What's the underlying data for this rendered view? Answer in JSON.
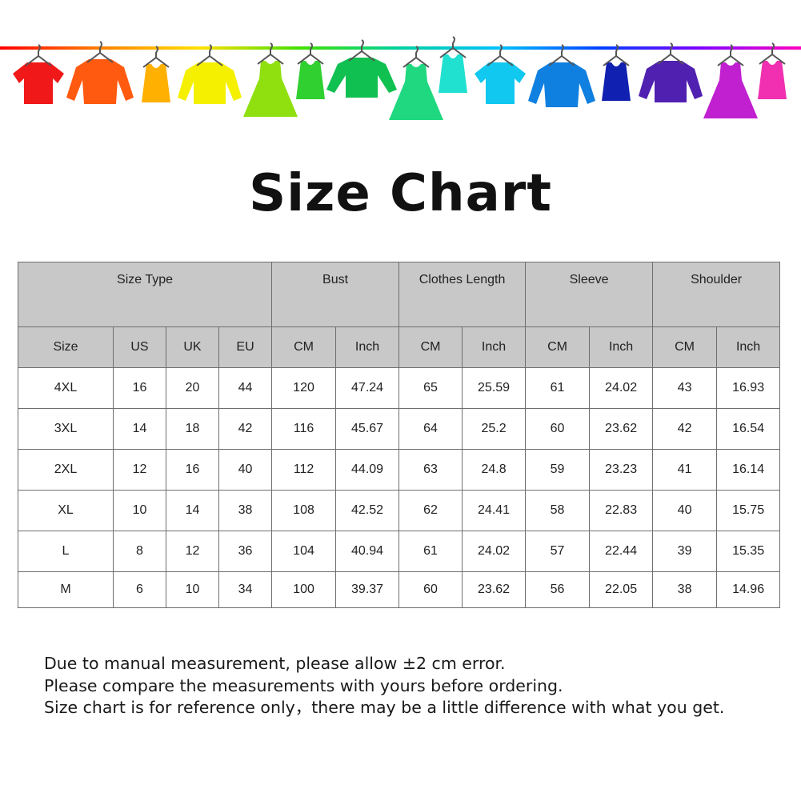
{
  "banner": {
    "line_colors": [
      "#ff0000",
      "#ff8000",
      "#ffe000",
      "#40e000",
      "#00d0a0",
      "#00c0ff",
      "#0040ff",
      "#8000ff",
      "#ff00c0"
    ],
    "garments": [
      {
        "icon": "tshirt-icon",
        "color": "#f01818"
      },
      {
        "icon": "shirt-icon",
        "color": "#ff5a10"
      },
      {
        "icon": "tank-top-icon",
        "color": "#ffb000"
      },
      {
        "icon": "sweater-icon",
        "color": "#f4f000"
      },
      {
        "icon": "dress-icon",
        "color": "#90e010"
      },
      {
        "icon": "tank-top-icon",
        "color": "#30d030"
      },
      {
        "icon": "long-sleeve-icon",
        "color": "#10c050"
      },
      {
        "icon": "dress-icon",
        "color": "#20d880"
      },
      {
        "icon": "tank-top-icon",
        "color": "#20e0d0"
      },
      {
        "icon": "tshirt-icon",
        "color": "#10c8f0"
      },
      {
        "icon": "shirt-icon",
        "color": "#1080e0"
      },
      {
        "icon": "tank-top-icon",
        "color": "#1020b0"
      },
      {
        "icon": "sweater-icon",
        "color": "#5020b0"
      },
      {
        "icon": "dress-icon",
        "color": "#c020d0"
      },
      {
        "icon": "tank-top-icon",
        "color": "#f030b0"
      }
    ]
  },
  "title": "Size Chart",
  "table": {
    "groups": [
      "Size Type",
      "Bust",
      "Clothes Length",
      "Sleeve",
      "Shoulder"
    ],
    "subheaders": [
      "Size",
      "US",
      "UK",
      "EU",
      "CM",
      "Inch",
      "CM",
      "Inch",
      "CM",
      "Inch",
      "CM",
      "Inch"
    ],
    "rows": [
      [
        "4XL",
        "16",
        "20",
        "44",
        "120",
        "47.24",
        "65",
        "25.59",
        "61",
        "24.02",
        "43",
        "16.93"
      ],
      [
        "3XL",
        "14",
        "18",
        "42",
        "116",
        "45.67",
        "64",
        "25.2",
        "60",
        "23.62",
        "42",
        "16.54"
      ],
      [
        "2XL",
        "12",
        "16",
        "40",
        "112",
        "44.09",
        "63",
        "24.8",
        "59",
        "23.23",
        "41",
        "16.14"
      ],
      [
        "XL",
        "10",
        "14",
        "38",
        "108",
        "42.52",
        "62",
        "24.41",
        "58",
        "22.83",
        "40",
        "15.75"
      ],
      [
        "L",
        "8",
        "12",
        "36",
        "104",
        "40.94",
        "61",
        "24.02",
        "57",
        "22.44",
        "39",
        "15.35"
      ],
      [
        "M",
        "6",
        "10",
        "34",
        "100",
        "39.37",
        "60",
        "23.62",
        "56",
        "22.05",
        "38",
        "14.96"
      ]
    ]
  },
  "notes": [
    "Due to manual measurement, please allow ±2 cm error.",
    "Please compare the measurements with yours before ordering.",
    "Size chart is for reference only，there may be a little difference with what you get."
  ]
}
